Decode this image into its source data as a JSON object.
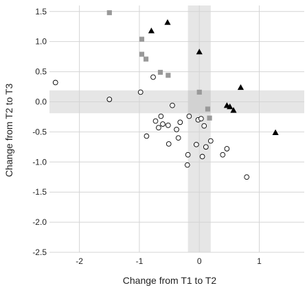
{
  "chart_data": {
    "type": "scatter",
    "title": "",
    "xlabel": "Change from T1 to T2",
    "ylabel": "Change from T2 to T3",
    "xlim": [
      -2.5,
      1.75
    ],
    "ylim": [
      -2.5,
      1.6
    ],
    "x_ticks": [
      -2,
      -1,
      0,
      1
    ],
    "x_tick_labels": [
      "-2",
      "-1",
      "0",
      "1"
    ],
    "y_ticks": [
      1.5,
      1.0,
      0.5,
      0.0,
      -0.5,
      -1.0,
      -1.5,
      -2.0,
      -2.5
    ],
    "y_tick_labels": [
      "1.5",
      "1.0",
      "0.5",
      "0.0",
      "-0.5",
      "-1.0",
      "-1.5",
      "-2.0",
      "-2.5"
    ],
    "grid": true,
    "bands": {
      "x_range": [
        -0.19,
        0.19
      ],
      "y_range": [
        -0.19,
        0.19
      ],
      "color": "#e6e6e6",
      "overlap_color": "#d2d2d2"
    },
    "series": [
      {
        "marker": "circle-open",
        "color": "#000000",
        "points": [
          [
            -2.4,
            0.32
          ],
          [
            -1.5,
            0.04
          ],
          [
            -0.98,
            0.16
          ],
          [
            -0.77,
            0.41
          ],
          [
            -0.45,
            -0.06
          ],
          [
            -0.73,
            -0.32
          ],
          [
            -0.64,
            -0.24
          ],
          [
            -0.68,
            -0.43
          ],
          [
            -0.61,
            -0.37
          ],
          [
            -0.52,
            -0.39
          ],
          [
            -0.88,
            -0.57
          ],
          [
            -0.38,
            -0.46
          ],
          [
            -0.32,
            -0.34
          ],
          [
            -0.35,
            -0.6
          ],
          [
            -0.51,
            -0.7
          ],
          [
            -0.17,
            -0.24
          ],
          [
            -0.02,
            -0.3
          ],
          [
            0.03,
            -0.28
          ],
          [
            0.08,
            -0.4
          ],
          [
            -0.05,
            -0.71
          ],
          [
            0.11,
            -0.75
          ],
          [
            0.19,
            -0.65
          ],
          [
            -0.19,
            -0.88
          ],
          [
            -0.2,
            -1.05
          ],
          [
            0.05,
            -0.91
          ],
          [
            0.39,
            -0.88
          ],
          [
            0.46,
            -0.78
          ],
          [
            0.79,
            -1.25
          ]
        ]
      },
      {
        "marker": "square-filled",
        "color": "#999999",
        "points": [
          [
            -1.5,
            1.48
          ],
          [
            -0.96,
            1.04
          ],
          [
            -0.96,
            0.79
          ],
          [
            -0.89,
            0.71
          ],
          [
            -0.65,
            0.49
          ],
          [
            -0.52,
            0.44
          ],
          [
            0.0,
            0.16
          ],
          [
            0.14,
            -0.12
          ],
          [
            0.17,
            -0.27
          ]
        ]
      },
      {
        "marker": "triangle-filled",
        "color": "#000000",
        "points": [
          [
            -0.8,
            1.18
          ],
          [
            -0.53,
            1.32
          ],
          [
            0.0,
            0.83
          ],
          [
            0.69,
            0.24
          ],
          [
            0.46,
            -0.06
          ],
          [
            0.51,
            -0.08
          ],
          [
            0.57,
            -0.14
          ],
          [
            1.27,
            -0.51
          ]
        ]
      }
    ]
  }
}
